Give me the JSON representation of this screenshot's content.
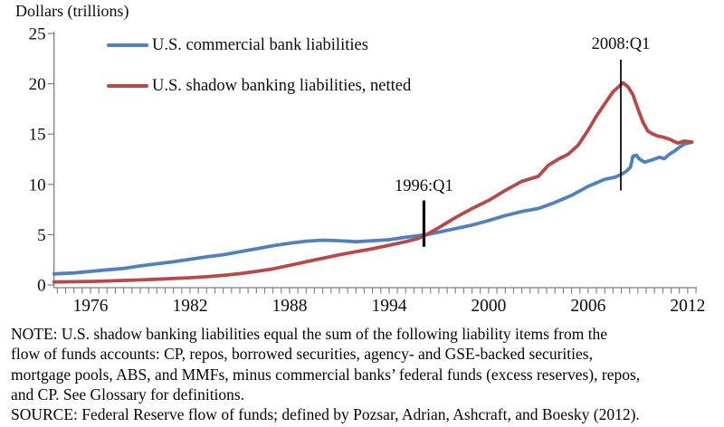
{
  "chart_data": {
    "type": "line",
    "title": "Dollars (trillions)",
    "x_tick_labels": [
      1976,
      1982,
      1988,
      1994,
      2000,
      2006,
      2012
    ],
    "y_ticks": [
      0,
      5,
      10,
      15,
      20,
      25
    ],
    "xlim": [
      1973.8,
      2012.5
    ],
    "ylim": [
      0,
      25
    ],
    "x_minor_tick_step": 0.5,
    "grid": "off",
    "legend_position": "top-left-inside",
    "axis_color": "#7d7d7d",
    "annotation_line_color": "#000000",
    "series": [
      {
        "name": "U.S. commercial bank liabilities",
        "color": "#4f81bd",
        "points": [
          [
            1973.8,
            1.1
          ],
          [
            1975,
            1.2
          ],
          [
            1976,
            1.35
          ],
          [
            1977,
            1.5
          ],
          [
            1978,
            1.65
          ],
          [
            1979,
            1.9
          ],
          [
            1980,
            2.1
          ],
          [
            1981,
            2.3
          ],
          [
            1982,
            2.55
          ],
          [
            1983,
            2.8
          ],
          [
            1984,
            3.0
          ],
          [
            1985,
            3.3
          ],
          [
            1986,
            3.6
          ],
          [
            1987,
            3.9
          ],
          [
            1988,
            4.15
          ],
          [
            1989,
            4.35
          ],
          [
            1990,
            4.45
          ],
          [
            1991,
            4.4
          ],
          [
            1992,
            4.3
          ],
          [
            1993,
            4.4
          ],
          [
            1994,
            4.5
          ],
          [
            1995,
            4.75
          ],
          [
            1996.25,
            5.0
          ],
          [
            1997,
            5.25
          ],
          [
            1998,
            5.6
          ],
          [
            1999,
            5.95
          ],
          [
            2000,
            6.4
          ],
          [
            2001,
            6.9
          ],
          [
            2002,
            7.3
          ],
          [
            2003,
            7.6
          ],
          [
            2004,
            8.2
          ],
          [
            2005,
            8.9
          ],
          [
            2006,
            9.8
          ],
          [
            2007,
            10.5
          ],
          [
            2007.6,
            10.7
          ],
          [
            2008,
            11.0
          ],
          [
            2008.3,
            11.3
          ],
          [
            2008.55,
            11.7
          ],
          [
            2008.7,
            12.8
          ],
          [
            2008.9,
            12.9
          ],
          [
            2009.1,
            12.5
          ],
          [
            2009.4,
            12.2
          ],
          [
            2009.8,
            12.4
          ],
          [
            2010.3,
            12.7
          ],
          [
            2010.6,
            12.55
          ],
          [
            2010.9,
            13.0
          ],
          [
            2011.2,
            13.3
          ],
          [
            2011.5,
            13.7
          ],
          [
            2011.8,
            14.0
          ],
          [
            2012.25,
            14.2
          ]
        ]
      },
      {
        "name": "U.S. shadow banking liabilities, netted",
        "color": "#b54a48",
        "points": [
          [
            1973.8,
            0.3
          ],
          [
            1975,
            0.32
          ],
          [
            1976,
            0.35
          ],
          [
            1977,
            0.4
          ],
          [
            1978,
            0.45
          ],
          [
            1979,
            0.5
          ],
          [
            1980,
            0.57
          ],
          [
            1981,
            0.65
          ],
          [
            1982,
            0.72
          ],
          [
            1983,
            0.82
          ],
          [
            1984,
            0.95
          ],
          [
            1985,
            1.12
          ],
          [
            1986,
            1.35
          ],
          [
            1987,
            1.6
          ],
          [
            1988,
            1.95
          ],
          [
            1989,
            2.3
          ],
          [
            1990,
            2.65
          ],
          [
            1991,
            3.0
          ],
          [
            1992,
            3.3
          ],
          [
            1993,
            3.6
          ],
          [
            1994,
            3.95
          ],
          [
            1995,
            4.3
          ],
          [
            1995.8,
            4.65
          ],
          [
            1996.25,
            5.0
          ],
          [
            1997,
            5.7
          ],
          [
            1998,
            6.7
          ],
          [
            1999,
            7.6
          ],
          [
            2000,
            8.4
          ],
          [
            2001,
            9.4
          ],
          [
            2002,
            10.3
          ],
          [
            2003,
            10.8
          ],
          [
            2003.6,
            11.9
          ],
          [
            2004.2,
            12.5
          ],
          [
            2004.8,
            13.0
          ],
          [
            2005.4,
            13.9
          ],
          [
            2006,
            15.4
          ],
          [
            2006.5,
            16.8
          ],
          [
            2007,
            18.0
          ],
          [
            2007.5,
            19.2
          ],
          [
            2008.1,
            20.1
          ],
          [
            2008.4,
            19.7
          ],
          [
            2008.7,
            18.9
          ],
          [
            2009,
            17.5
          ],
          [
            2009.3,
            16.2
          ],
          [
            2009.6,
            15.3
          ],
          [
            2009.9,
            15.0
          ],
          [
            2010.2,
            14.8
          ],
          [
            2010.5,
            14.7
          ],
          [
            2010.9,
            14.5
          ],
          [
            2011.4,
            14.1
          ],
          [
            2011.8,
            14.3
          ],
          [
            2012.25,
            14.2
          ]
        ]
      }
    ],
    "annotations": [
      {
        "label": "1996:Q1",
        "year": 1996.1,
        "line_from": 8.4,
        "line_to": 3.8,
        "stroke_width": 3.2,
        "label_y": 10.7
      },
      {
        "label": "2008:Q1",
        "year": 2007.97,
        "line_from": 22.4,
        "line_to": 9.4,
        "stroke_width": 1.7,
        "label_y": 24.8
      }
    ]
  },
  "footnote": {
    "lines": [
      "NOTE: U.S. shadow banking liabilities equal the sum of the following liability items from the",
      "flow of funds accounts: CP, repos, borrowed securities, agency- and GSE-backed securities,",
      "mortgage pools, ABS, and MMFs, minus commercial banks’ federal funds (excess reserves), repos,",
      "and CP. See Glossary for definitions.",
      "SOURCE: Federal Reserve flow of funds; defined by Pozsar, Adrian, Ashcraft, and Boesky (2012)."
    ]
  }
}
